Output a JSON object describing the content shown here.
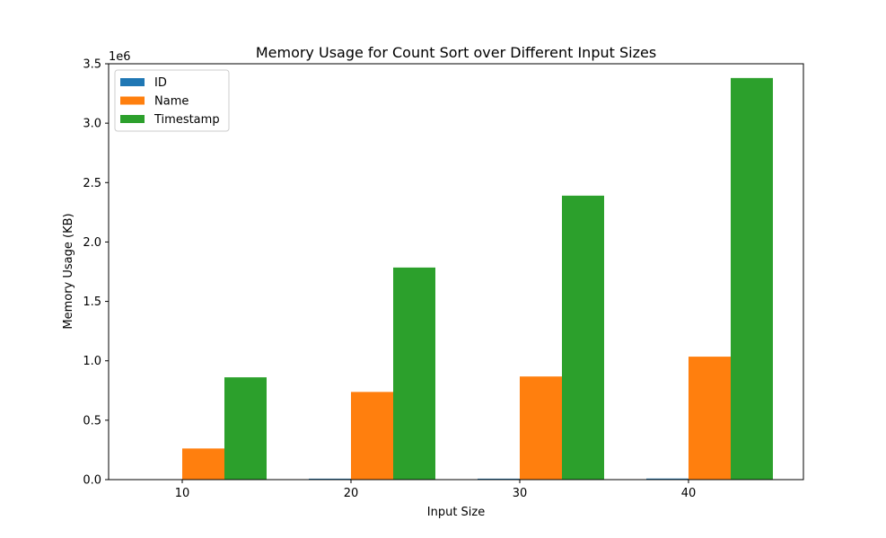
{
  "chart_data": {
    "type": "bar",
    "title": "Memory Usage for Count Sort over Different Input Sizes",
    "xlabel": "Input Size",
    "ylabel": "Memory Usage (KB)",
    "y_offset_label": "1e6",
    "categories": [
      "10",
      "20",
      "30",
      "40"
    ],
    "ylim": [
      0,
      3500000
    ],
    "yticks": [
      0,
      500000,
      1000000,
      1500000,
      2000000,
      2500000,
      3000000,
      3500000
    ],
    "ytick_labels": [
      "0.0",
      "0.5",
      "1.0",
      "1.5",
      "2.0",
      "2.5",
      "3.0",
      "3.5"
    ],
    "grid": false,
    "legend_position": "top-left",
    "series": [
      {
        "name": "ID",
        "color": "#1f77b4",
        "values": [
          2000,
          8000,
          8000,
          9000
        ]
      },
      {
        "name": "Name",
        "color": "#ff7f0e",
        "values": [
          262000,
          738000,
          868000,
          1035000
        ]
      },
      {
        "name": "Timestamp",
        "color": "#2ca02c",
        "values": [
          861000,
          1785000,
          2390000,
          3380000
        ]
      }
    ]
  }
}
